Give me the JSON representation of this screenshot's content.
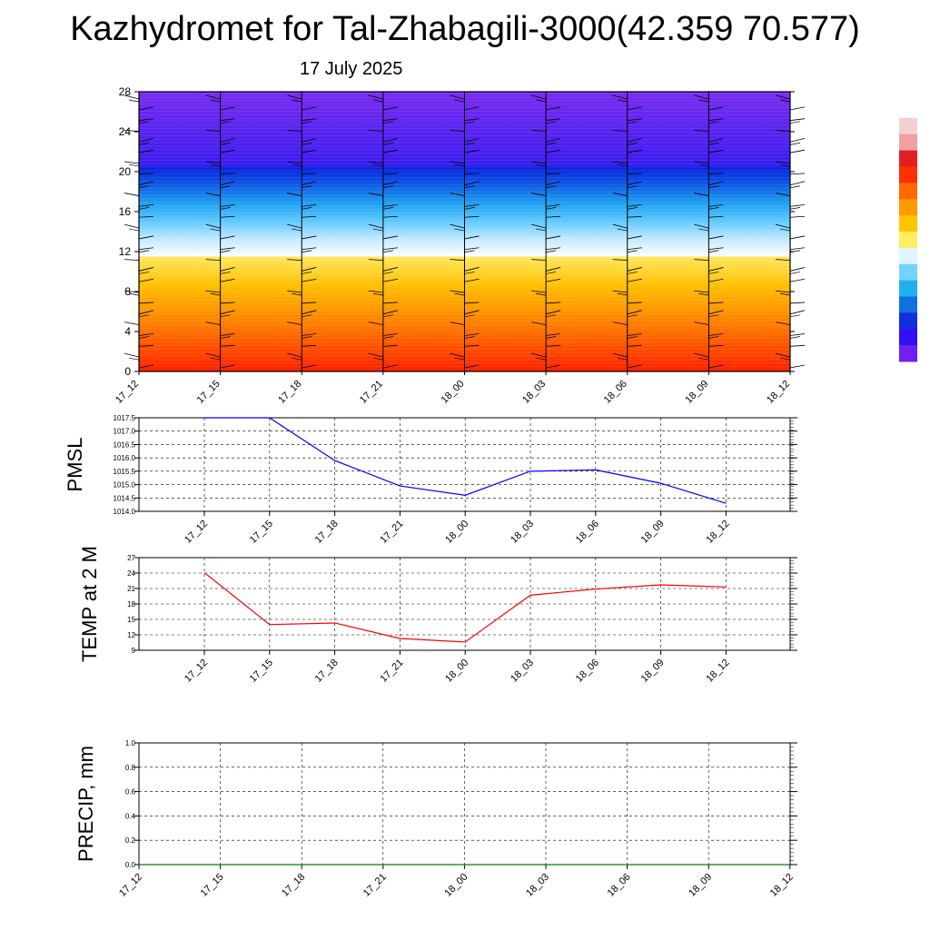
{
  "page": {
    "title": "Kazhydromet for Tal-Zhabagili-3000(42.359 70.577)",
    "subtitle": "17 July 2025"
  },
  "chart_data": [
    {
      "type": "heatmap",
      "title": "",
      "x": [
        "17_12",
        "17_15",
        "17_18",
        "17_21",
        "18_00",
        "18_03",
        "18_06",
        "18_09",
        "18_12"
      ],
      "ylim": [
        0,
        28
      ],
      "yticks": [
        0,
        4,
        8,
        12,
        16,
        20,
        24,
        28
      ],
      "legend": "right",
      "colorbar": [
        "#ffffff",
        "#f4d0d0",
        "#f0a0a0",
        "#e02020",
        "#ff3000",
        "#ff6a00",
        "#ff9a00",
        "#ffc400",
        "#ffee60",
        "#e0f4ff",
        "#70d4ff",
        "#20b0f0",
        "#1070e0",
        "#1030e0",
        "#3010f0",
        "#7020f0"
      ],
      "bands": [
        {
          "from": 0,
          "to": 11.5,
          "colors": [
            "#ff2000",
            "#ff5a00",
            "#ff9000",
            "#ffc000",
            "#ffe860"
          ]
        },
        {
          "from": 11.5,
          "to": 20.5,
          "colors": [
            "#ffffff",
            "#bfe8ff",
            "#5cc8ff",
            "#1e9ef0",
            "#0e5ae6",
            "#0a20dc"
          ]
        },
        {
          "from": 20.5,
          "to": 28,
          "colors": [
            "#3a1cf0",
            "#7a2cf0"
          ]
        }
      ],
      "wind_barbs": true
    },
    {
      "type": "line",
      "ylabel": "PMSL",
      "x": [
        "17_12",
        "17_15",
        "17_18",
        "17_21",
        "18_00",
        "18_03",
        "18_06",
        "18_09",
        "18_12"
      ],
      "series": [
        {
          "values": [
            1017.5,
            1017.5,
            1015.9,
            1014.95,
            1014.6,
            1015.5,
            1015.55,
            1015.05,
            1014.3
          ],
          "color": "#0000ff"
        }
      ],
      "ylim": [
        1014.0,
        1017.5
      ],
      "yticks": [
        "1014.0",
        "1014.5",
        "1015.0",
        "1015.5",
        "1016.0",
        "1016.5",
        "1017.0",
        "1017.5"
      ],
      "grid": true
    },
    {
      "type": "line",
      "ylabel": "TEMP at 2 M",
      "x": [
        "17_12",
        "17_15",
        "17_18",
        "17_21",
        "18_00",
        "18_03",
        "18_06",
        "18_09",
        "18_12"
      ],
      "series": [
        {
          "values": [
            24.1,
            14.0,
            14.3,
            11.3,
            10.6,
            19.7,
            20.9,
            21.7,
            21.3
          ],
          "color": "#ff0000"
        }
      ],
      "ylim": [
        9,
        27
      ],
      "yticks": [
        "9",
        "12",
        "15",
        "18",
        "21",
        "24",
        "27"
      ],
      "grid": true
    },
    {
      "type": "line",
      "ylabel": "PRECIP, mm",
      "x": [
        "17_12",
        "17_15",
        "17_18",
        "17_21",
        "18_00",
        "18_03",
        "18_06",
        "18_09",
        "18_12"
      ],
      "series": [
        {
          "values": [
            0,
            0,
            0,
            0,
            0,
            0,
            0,
            0,
            0
          ],
          "color": "#008000"
        }
      ],
      "ylim": [
        0,
        1.0
      ],
      "yticks": [
        "0.0",
        "0.2",
        "0.4",
        "0.6",
        "0.8",
        "1.0"
      ],
      "grid": true
    }
  ]
}
